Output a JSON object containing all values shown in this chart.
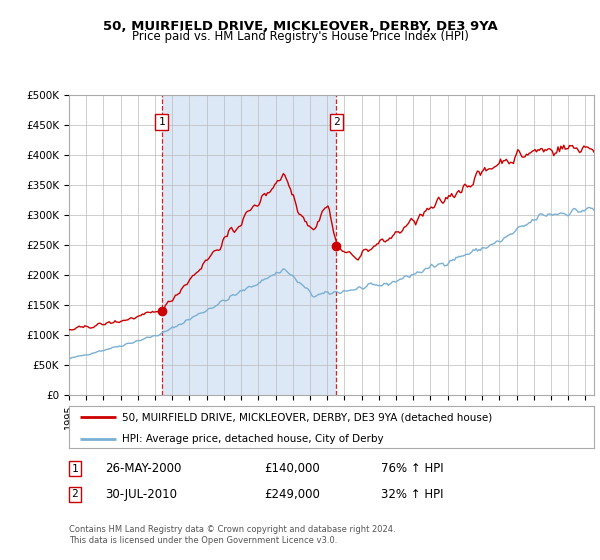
{
  "title": "50, MUIRFIELD DRIVE, MICKLEOVER, DERBY, DE3 9YA",
  "subtitle": "Price paid vs. HM Land Registry's House Price Index (HPI)",
  "legend_property": "50, MUIRFIELD DRIVE, MICKLEOVER, DERBY, DE3 9YA (detached house)",
  "legend_hpi": "HPI: Average price, detached house, City of Derby",
  "footnote": "Contains HM Land Registry data © Crown copyright and database right 2024.\nThis data is licensed under the Open Government Licence v3.0.",
  "sale1_date": "26-MAY-2000",
  "sale1_price": "£140,000",
  "sale1_hpi": "76% ↑ HPI",
  "sale2_date": "30-JUL-2010",
  "sale2_price": "£249,000",
  "sale2_hpi": "32% ↑ HPI",
  "sale1_year": 2000.38,
  "sale2_year": 2010.54,
  "sale1_price_val": 140000,
  "sale2_price_val": 249000,
  "property_color": "#cc0000",
  "hpi_color": "#7ab0d4",
  "shade_color": "#dce8f5",
  "background_color": "#dce8f5",
  "grid_color": "#bbbbbb",
  "ylim": [
    0,
    500000
  ],
  "xlim_start": 1995.0,
  "xlim_end": 2025.5
}
